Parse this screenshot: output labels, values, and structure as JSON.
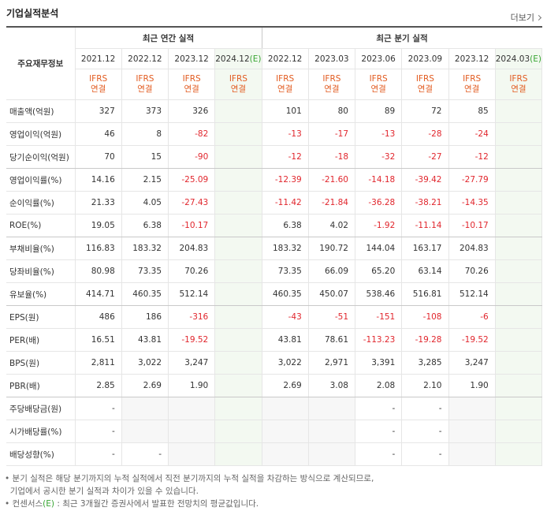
{
  "header": {
    "title": "기업실적분석",
    "more": "더보기"
  },
  "table": {
    "corner": "주요재무정보",
    "groups": [
      {
        "label": "최근 연간 실적",
        "span": 4
      },
      {
        "label": "최근 분기 실적",
        "span": 6
      }
    ],
    "columns": [
      {
        "period": "2021.12",
        "est": null,
        "basis": [
          "IFRS",
          "연결"
        ]
      },
      {
        "period": "2022.12",
        "est": null,
        "basis": [
          "IFRS",
          "연결"
        ]
      },
      {
        "period": "2023.12",
        "est": null,
        "basis": [
          "IFRS",
          "연결"
        ]
      },
      {
        "period": "2024.12",
        "est": "(E)",
        "basis": [
          "IFRS",
          "연결"
        ]
      },
      {
        "period": "2022.12",
        "est": null,
        "basis": [
          "IFRS",
          "연결"
        ]
      },
      {
        "period": "2023.03",
        "est": null,
        "basis": [
          "IFRS",
          "연결"
        ]
      },
      {
        "period": "2023.06",
        "est": null,
        "basis": [
          "IFRS",
          "연결"
        ]
      },
      {
        "period": "2023.09",
        "est": null,
        "basis": [
          "IFRS",
          "연결"
        ]
      },
      {
        "period": "2023.12",
        "est": null,
        "basis": [
          "IFRS",
          "연결"
        ]
      },
      {
        "period": "2024.03",
        "est": "(E)",
        "basis": [
          "IFRS",
          "연결"
        ]
      }
    ],
    "rows": [
      {
        "label": "매출액(억원)",
        "values": [
          "327",
          "373",
          "326",
          null,
          "101",
          "80",
          "89",
          "72",
          "85",
          null
        ]
      },
      {
        "label": "영업이익(억원)",
        "values": [
          "46",
          "8",
          "-82",
          null,
          "-13",
          "-17",
          "-13",
          "-28",
          "-24",
          null
        ]
      },
      {
        "label": "당기순이익(억원)",
        "values": [
          "70",
          "15",
          "-90",
          null,
          "-12",
          "-18",
          "-32",
          "-27",
          "-12",
          null
        ]
      },
      {
        "label": "영업이익률(%)",
        "values": [
          "14.16",
          "2.15",
          "-25.09",
          null,
          "-12.39",
          "-21.60",
          "-14.18",
          "-39.42",
          "-27.79",
          null
        ]
      },
      {
        "label": "순이익률(%)",
        "values": [
          "21.33",
          "4.05",
          "-27.43",
          null,
          "-11.42",
          "-21.84",
          "-36.28",
          "-38.21",
          "-14.35",
          null
        ]
      },
      {
        "label": "ROE(%)",
        "values": [
          "19.05",
          "6.38",
          "-10.17",
          null,
          "6.38",
          "4.02",
          "-1.92",
          "-11.14",
          "-10.17",
          null
        ]
      },
      {
        "label": "부채비율(%)",
        "values": [
          "116.83",
          "183.32",
          "204.83",
          null,
          "183.32",
          "190.72",
          "144.04",
          "163.17",
          "204.83",
          null
        ]
      },
      {
        "label": "당좌비율(%)",
        "values": [
          "80.98",
          "73.35",
          "70.26",
          null,
          "73.35",
          "66.09",
          "65.20",
          "63.14",
          "70.26",
          null
        ]
      },
      {
        "label": "유보율(%)",
        "values": [
          "414.71",
          "460.35",
          "512.14",
          null,
          "460.35",
          "450.07",
          "538.46",
          "516.81",
          "512.14",
          null
        ]
      },
      {
        "label": "EPS(원)",
        "values": [
          "486",
          "186",
          "-316",
          null,
          "-43",
          "-51",
          "-151",
          "-108",
          "-6",
          null
        ]
      },
      {
        "label": "PER(배)",
        "values": [
          "16.51",
          "43.81",
          "-19.52",
          null,
          "43.81",
          "78.61",
          "-113.23",
          "-19.28",
          "-19.52",
          null
        ]
      },
      {
        "label": "BPS(원)",
        "values": [
          "2,811",
          "3,022",
          "3,247",
          null,
          "3,022",
          "2,971",
          "3,391",
          "3,285",
          "3,247",
          null
        ]
      },
      {
        "label": "PBR(배)",
        "values": [
          "2.85",
          "2.69",
          "1.90",
          null,
          "2.69",
          "3.08",
          "2.08",
          "2.10",
          "1.90",
          null
        ]
      },
      {
        "label": "주당배당금(원)",
        "values": [
          "-",
          null,
          null,
          null,
          null,
          null,
          "-",
          "-",
          null,
          null
        ]
      },
      {
        "label": "시가배당률(%)",
        "values": [
          "-",
          null,
          null,
          null,
          null,
          null,
          "-",
          "-",
          null,
          null
        ]
      },
      {
        "label": "배당성향(%)",
        "values": [
          "-",
          "-",
          null,
          null,
          null,
          null,
          "-",
          "-",
          null,
          null
        ]
      }
    ]
  },
  "notes": [
    {
      "lines": [
        "분기 실적은 해당 분기까지의 누적 실적에서 직전 분기까지의 누적 실적을 차감하는 방식으로 계산되므로,",
        "기업에서 공시한 분기 실적과 차이가 있을 수 있습니다."
      ]
    },
    {
      "lines": [
        "컨센서스",
        "(E)",
        " : 최근 3개월간 증권사에서 발표한 전망치의 평균값입니다."
      ]
    }
  ]
}
